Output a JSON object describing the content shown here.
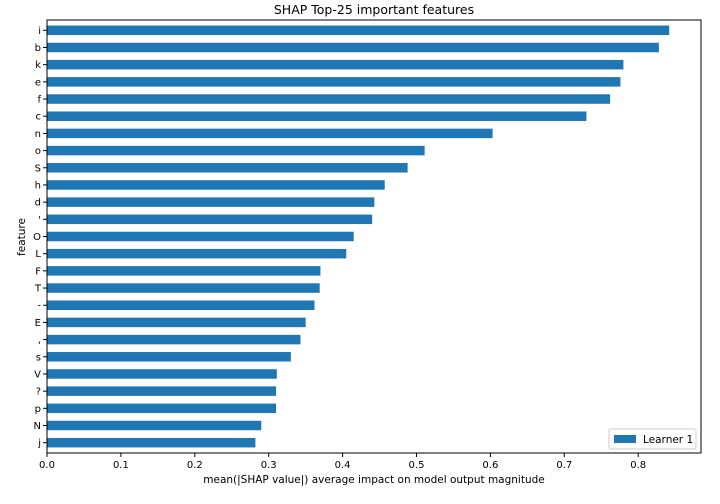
{
  "chart_data": {
    "type": "bar",
    "orientation": "horizontal",
    "title": "SHAP Top-25 important features",
    "xlabel": "mean(|SHAP value|) average impact on model output magnitude",
    "ylabel": "feature",
    "xlim": [
      0,
      0.885
    ],
    "xticks": [
      "0.0",
      "0.1",
      "0.2",
      "0.3",
      "0.4",
      "0.5",
      "0.6",
      "0.7",
      "0.8"
    ],
    "grid": false,
    "legend": {
      "position": "bottom-right",
      "entries": [
        "Learner 1"
      ]
    },
    "categories": [
      "i",
      "b",
      "k",
      "e",
      "f",
      "c",
      "n",
      "o",
      "S",
      "h",
      "d",
      "'",
      "O",
      "L",
      "F",
      "T",
      "-",
      "E",
      ",",
      "s",
      "V",
      "?",
      "p",
      "N",
      "j"
    ],
    "series": [
      {
        "name": "Learner 1",
        "color": "#1f77b4",
        "values": [
          0.842,
          0.828,
          0.78,
          0.776,
          0.762,
          0.73,
          0.603,
          0.511,
          0.488,
          0.457,
          0.443,
          0.44,
          0.415,
          0.405,
          0.37,
          0.369,
          0.362,
          0.35,
          0.343,
          0.33,
          0.311,
          0.31,
          0.31,
          0.29,
          0.282
        ]
      }
    ]
  }
}
